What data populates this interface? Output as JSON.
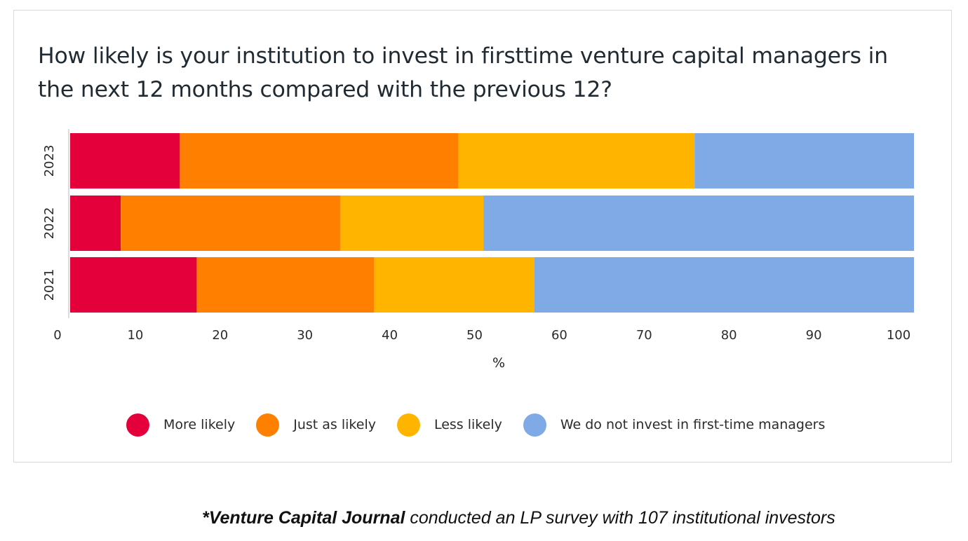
{
  "title": "How likely is your institution to invest in firsttime venture capital managers in the next 12 months compared with the previous 12?",
  "footnote": {
    "source_bold": "*Venture Capital Journal",
    "text": " conducted an LP survey with 107 institutional investors"
  },
  "chart_data": {
    "type": "bar",
    "orientation": "horizontal",
    "stacked": true,
    "categories": [
      "2023",
      "2022",
      "2021"
    ],
    "series": [
      {
        "name": "More likely",
        "color": "#e4003b",
        "values": [
          13,
          6,
          15
        ]
      },
      {
        "name": "Just as likely",
        "color": "#ff7f00",
        "values": [
          33,
          26,
          21
        ]
      },
      {
        "name": "Less likely",
        "color": "#ffb400",
        "values": [
          28,
          17,
          19
        ]
      },
      {
        "name": "We do not invest in first-time managers",
        "color": "#7faae6",
        "values": [
          26,
          51,
          45
        ]
      }
    ],
    "xlabel": "%",
    "xlim": [
      0,
      100
    ],
    "xticks": [
      0,
      10,
      20,
      30,
      40,
      50,
      60,
      70,
      80,
      90,
      100
    ],
    "grid": false,
    "legend_position": "bottom"
  }
}
